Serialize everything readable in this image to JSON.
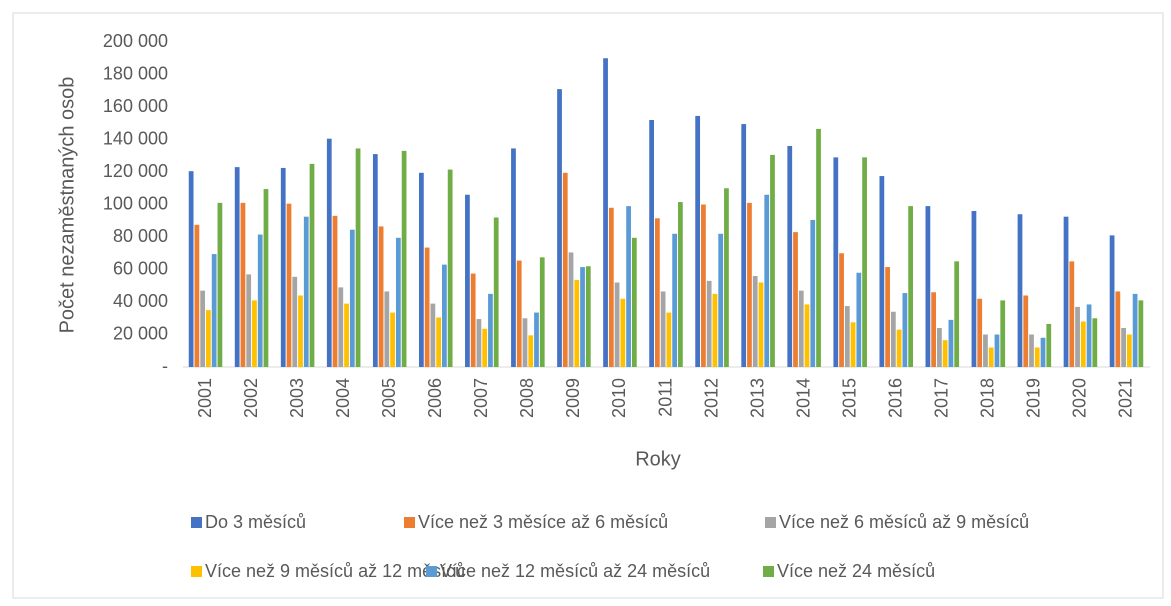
{
  "chart_data": {
    "type": "bar",
    "y_label": "Počet nezaměstnaných osob",
    "x_label": "Roky",
    "categories": [
      "2001",
      "2002",
      "2003",
      "2004",
      "2005",
      "2006",
      "2007",
      "2008",
      "2009",
      "2010",
      "2011",
      "2012",
      "2013",
      "2014",
      "2015",
      "2016",
      "2017",
      "2018",
      "2019",
      "2020",
      "2021"
    ],
    "series": [
      {
        "name": "Do 3 měsíců",
        "color": "#4472c4",
        "values": [
          120500,
          123000,
          122500,
          140500,
          131000,
          119500,
          106000,
          134500,
          171000,
          190000,
          152000,
          154500,
          149500,
          136000,
          129000,
          117500,
          99000,
          96000,
          94000,
          92500,
          81000
        ]
      },
      {
        "name": "Více než 3 měsíce až 6 měsíců",
        "color": "#ed7d31",
        "values": [
          87500,
          101000,
          100500,
          93000,
          86500,
          73500,
          57500,
          65500,
          119500,
          98000,
          91500,
          100000,
          101000,
          83000,
          70000,
          61500,
          46000,
          42000,
          44000,
          65000,
          46500
        ]
      },
      {
        "name": "Více než 6 měsíců až 9 měsíců",
        "color": "#a5a5a5",
        "values": [
          47000,
          57000,
          55500,
          49000,
          46500,
          39000,
          29500,
          30000,
          70500,
          52000,
          46500,
          53000,
          56000,
          47000,
          37500,
          34000,
          24000,
          20000,
          20000,
          37000,
          24000
        ]
      },
      {
        "name": "Více než 9 měsíců až 12 měsíců",
        "color": "#ffc000",
        "values": [
          35000,
          41000,
          44000,
          39000,
          33500,
          30500,
          23500,
          19500,
          53500,
          42000,
          33500,
          45000,
          52000,
          38500,
          27500,
          23000,
          16500,
          12000,
          12000,
          28000,
          20000
        ]
      },
      {
        "name": "Více než 12 měsíců až 24 měsíců",
        "color": "#5b9bd5",
        "values": [
          69500,
          81500,
          92500,
          84500,
          79500,
          63000,
          45000,
          33500,
          61500,
          99000,
          82000,
          82000,
          106000,
          90500,
          58000,
          45500,
          29000,
          20000,
          18000,
          38500,
          45000
        ]
      },
      {
        "name": "Více než 24 měsíců",
        "color": "#70ad47",
        "values": [
          101000,
          109500,
          125000,
          134500,
          133000,
          121500,
          92000,
          67500,
          62000,
          79500,
          101500,
          110000,
          130500,
          146500,
          129000,
          99000,
          65000,
          41000,
          26500,
          30000,
          41000
        ]
      }
    ],
    "ylim": [
      0,
      200000
    ],
    "yticks": [
      {
        "value": 0,
        "label": "-"
      },
      {
        "value": 20000,
        "label": "20 000"
      },
      {
        "value": 40000,
        "label": "40 000"
      },
      {
        "value": 60000,
        "label": "60 000"
      },
      {
        "value": 80000,
        "label": "80 000"
      },
      {
        "value": 100000,
        "label": "100 000"
      },
      {
        "value": 120000,
        "label": "120 000"
      },
      {
        "value": 140000,
        "label": "140 000"
      },
      {
        "value": 160000,
        "label": "160 000"
      },
      {
        "value": 180000,
        "label": "180 000"
      },
      {
        "value": 200000,
        "label": "200 000"
      }
    ]
  }
}
